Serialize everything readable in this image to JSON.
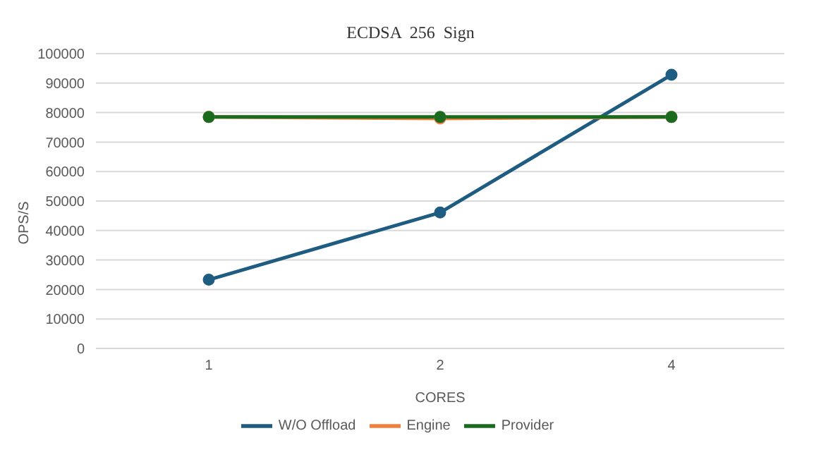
{
  "chart_data": {
    "type": "line",
    "title": "ECDSA  256  Sign",
    "xlabel": "CORES",
    "ylabel": "OPS/S",
    "categories": [
      "1",
      "2",
      "4"
    ],
    "series": [
      {
        "name": "W/O Offload",
        "color": "#1f5c82",
        "values": [
          23300,
          46100,
          92800
        ]
      },
      {
        "name": "Engine",
        "color": "#f07f3c",
        "values": [
          78500,
          78000,
          78500
        ]
      },
      {
        "name": "Provider",
        "color": "#1b6b1f",
        "values": [
          78500,
          78500,
          78500
        ]
      }
    ],
    "ylim": [
      0,
      100000
    ],
    "yticks": [
      0,
      10000,
      20000,
      30000,
      40000,
      50000,
      60000,
      70000,
      80000,
      90000,
      100000
    ],
    "grid": "y",
    "legend": "bottom",
    "marker": "circle",
    "line_style": "solid"
  }
}
